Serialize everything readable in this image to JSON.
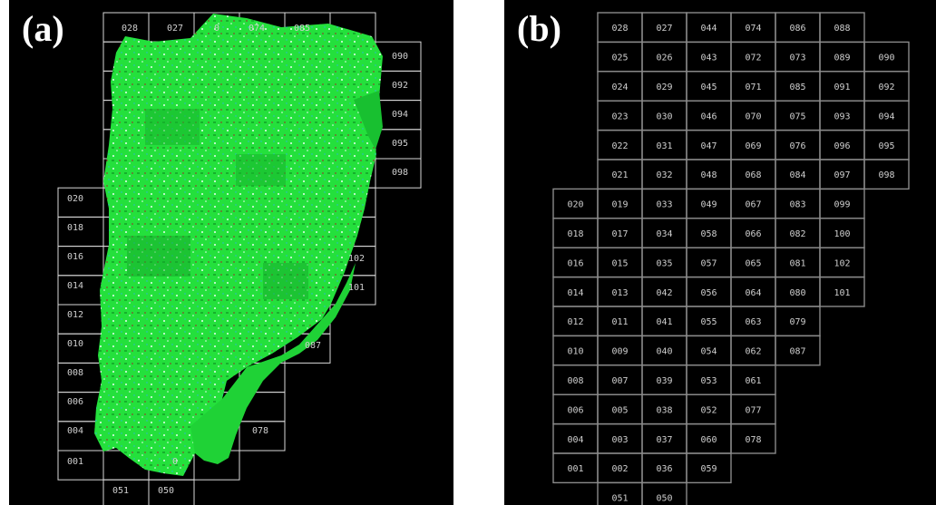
{
  "panel_a": {
    "label": "(a)",
    "visible_labels": [
      "028",
      "027",
      "0",
      "074",
      "085",
      "090",
      "092",
      "094",
      "095",
      "098",
      "020",
      "018",
      "016",
      "014",
      "012",
      "010",
      "008",
      "006",
      "004",
      "001",
      "102",
      "101",
      "087",
      "078",
      "051",
      "050",
      "0"
    ]
  },
  "panel_b": {
    "label": "(b)",
    "rows": [
      [
        "",
        "",
        "028",
        "027",
        "044",
        "074",
        "086",
        "088",
        ""
      ],
      [
        "",
        "",
        "025",
        "026",
        "043",
        "072",
        "073",
        "089",
        "090"
      ],
      [
        "",
        "",
        "024",
        "029",
        "045",
        "071",
        "085",
        "091",
        "092"
      ],
      [
        "",
        "",
        "023",
        "030",
        "046",
        "070",
        "075",
        "093",
        "094"
      ],
      [
        "",
        "",
        "022",
        "031",
        "047",
        "069",
        "076",
        "096",
        "095"
      ],
      [
        "",
        "",
        "021",
        "032",
        "048",
        "068",
        "084",
        "097",
        "098"
      ],
      [
        "",
        "020",
        "019",
        "033",
        "049",
        "067",
        "083",
        "099",
        ""
      ],
      [
        "",
        "018",
        "017",
        "034",
        "058",
        "066",
        "082",
        "100",
        ""
      ],
      [
        "",
        "016",
        "015",
        "035",
        "057",
        "065",
        "081",
        "102",
        ""
      ],
      [
        "",
        "014",
        "013",
        "042",
        "056",
        "064",
        "080",
        "101",
        ""
      ],
      [
        "",
        "012",
        "011",
        "041",
        "055",
        "063",
        "079",
        "",
        ""
      ],
      [
        "",
        "010",
        "009",
        "040",
        "054",
        "062",
        "087",
        "",
        ""
      ],
      [
        "",
        "008",
        "007",
        "039",
        "053",
        "061",
        "",
        "",
        ""
      ],
      [
        "",
        "006",
        "005",
        "038",
        "052",
        "077",
        "",
        "",
        ""
      ],
      [
        "",
        "004",
        "003",
        "037",
        "060",
        "078",
        "",
        "",
        ""
      ],
      [
        "",
        "001",
        "002",
        "036",
        "059",
        "",
        "",
        "",
        ""
      ],
      [
        "",
        "",
        "051",
        "050",
        "",
        "",
        "",
        "",
        ""
      ]
    ]
  },
  "colors": {
    "background": "#000000",
    "grid": "#8a8a8a",
    "text": "#cfcfcf",
    "vegetation": "#22e83a",
    "vegetation_dark": "#14b82a",
    "soil": "#8a4a2a",
    "highlight": "#e8fff0"
  }
}
